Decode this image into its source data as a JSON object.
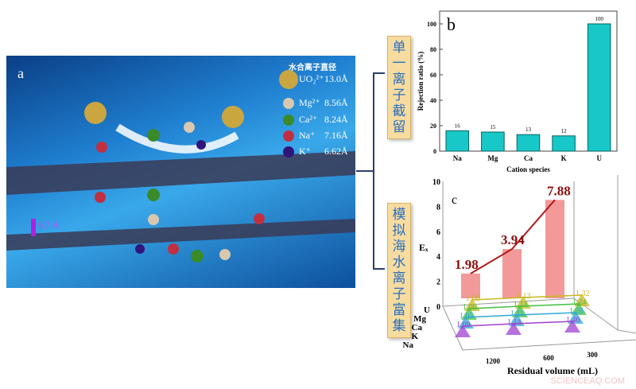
{
  "panel_a": {
    "label": "a",
    "legend_title": "水合离子直径",
    "ions": [
      {
        "name": "UO₂²⁺",
        "diameter": "13.0Å",
        "color": "#c9a640"
      },
      {
        "name": "Mg²⁺",
        "diameter": "8.56Å",
        "color": "#d8c8b0"
      },
      {
        "name": "Ca²⁺",
        "diameter": "8.24Å",
        "color": "#3a8a2a"
      },
      {
        "name": "Na⁺",
        "diameter": "7.16Å",
        "color": "#c03040"
      },
      {
        "name": "K⁺",
        "diameter": "6.62Å",
        "color": "#30157a"
      }
    ],
    "spacing": "9.7 Å"
  },
  "side_labels": {
    "top": "单一离子截留",
    "bottom": "模拟海水离子富集"
  },
  "watermark": "SCIENCEAQ.COM",
  "chart_data": [
    {
      "panel": "b",
      "type": "bar",
      "categories": [
        "Na",
        "Mg",
        "Ca",
        "K",
        "U"
      ],
      "values": [
        16,
        15,
        13,
        12,
        100
      ],
      "data_labels": [
        "16",
        "15",
        "13",
        "12",
        "100"
      ],
      "xlabel": "Cation species",
      "ylabel": "Rejection ratio (%)",
      "ylim": [
        0,
        110
      ],
      "yticks": [
        0,
        20,
        40,
        60,
        80,
        100
      ],
      "color": "#18c8c8",
      "error_bars": true
    },
    {
      "panel": "c",
      "type": "bar",
      "subtype": "3d",
      "xlabel": "Residual volume (mL)",
      "ylabel": "Eₓ",
      "categories": [
        "1200",
        "600",
        "300"
      ],
      "ylim": [
        0,
        10
      ],
      "yticks": [
        0,
        2,
        4,
        6,
        8,
        10
      ],
      "depth_labels": [
        "U",
        "Mg",
        "Ca",
        "K",
        "Na"
      ],
      "series": [
        {
          "name": "U",
          "values": [
            1.98,
            3.94,
            7.88
          ],
          "labels": [
            "1.98",
            "3.94",
            "7.88"
          ],
          "color": "#f08080"
        },
        {
          "name": "Mg",
          "values": [
            1.08,
            1.13,
            1.32
          ],
          "labels": [
            "1.08",
            "1.13",
            "1.32"
          ],
          "color": "#c8b820"
        },
        {
          "name": "Ca",
          "values": [
            1.06,
            1.14,
            1.24
          ],
          "labels": [
            "1.06",
            "1.14",
            "1.24"
          ],
          "color": "#40c040"
        },
        {
          "name": "K",
          "values": [
            1.05,
            1.11,
            1.28
          ],
          "labels": [
            "1.05",
            "1.11",
            "1.28"
          ],
          "color": "#30a8d8"
        },
        {
          "name": "Na",
          "values": [
            1.09,
            1.14,
            1.46
          ],
          "labels": [
            "1.09",
            "1.14",
            "1.46"
          ],
          "color": "#a040d0"
        }
      ]
    }
  ]
}
